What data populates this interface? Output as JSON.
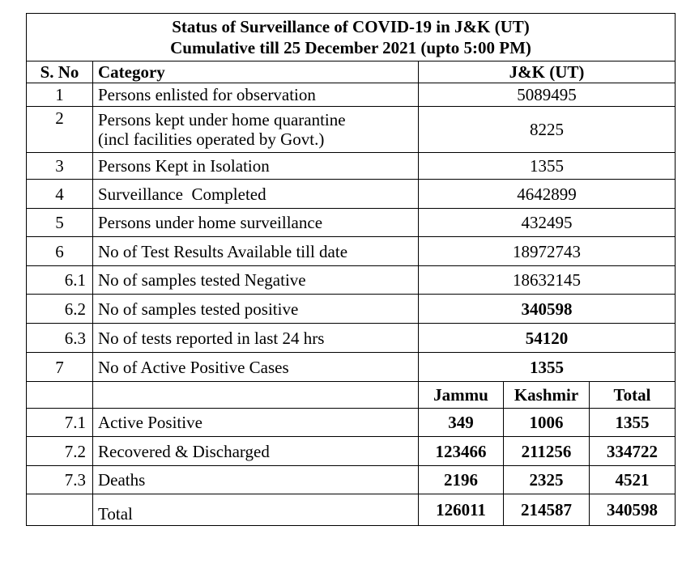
{
  "title_line1": "Status of Surveillance of COVID-19 in J&K (UT)",
  "title_line2": "Cumulative till 25 December 2021 (upto 5:00 PM)",
  "headers": {
    "sno": "S. No",
    "category": "Category",
    "region": "J&K (UT)"
  },
  "rows": [
    {
      "sno": "1",
      "category": "Persons enlisted for observation",
      "value": "5089495"
    },
    {
      "sno": "2",
      "category_line1": "Persons kept under home quarantine",
      "category_line2": "(incl facilities operated by Govt.)",
      "value": "8225"
    },
    {
      "sno": "3",
      "category": "Persons Kept in Isolation",
      "value": "1355"
    },
    {
      "sno": "4",
      "category": "Surveillance  Completed",
      "value": "4642899"
    },
    {
      "sno": "5",
      "category": "Persons under home surveillance",
      "value": "432495"
    },
    {
      "sno": "6",
      "category": "No of Test Results Available till date",
      "value": "18972743"
    },
    {
      "sno": "6.1",
      "category": "No of samples tested Negative",
      "value": "18632145"
    },
    {
      "sno": "6.2",
      "category": "No of samples tested positive",
      "value": "340598"
    },
    {
      "sno": "6.3",
      "category": "No of tests reported in last 24 hrs",
      "value": "54120"
    },
    {
      "sno": "7",
      "category": "No of Active Positive Cases",
      "value": "1355"
    }
  ],
  "sub_headers": {
    "jammu": "Jammu",
    "kashmir": "Kashmir",
    "total": "Total"
  },
  "sub_rows": [
    {
      "sno": "7.1",
      "category": "Active Positive",
      "jammu": "349",
      "kashmir": "1006",
      "total": "1355"
    },
    {
      "sno": "7.2",
      "category": "Recovered & Discharged",
      "jammu": "123466",
      "kashmir": "211256",
      "total": "334722"
    },
    {
      "sno": "7.3",
      "category": "Deaths",
      "jammu": "2196",
      "kashmir": "2325",
      "total": "4521"
    }
  ],
  "total_row": {
    "label": "Total",
    "jammu": "126011",
    "kashmir": "214587",
    "total": "340598"
  }
}
